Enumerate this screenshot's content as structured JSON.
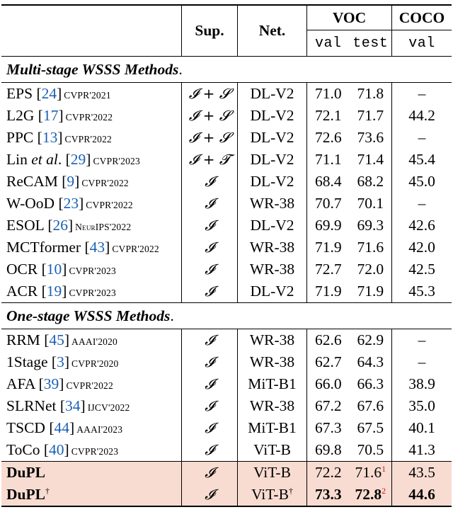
{
  "header": {
    "sup": "Sup.",
    "net": "Net.",
    "voc": "VOC",
    "coco": "COCO",
    "val": "val",
    "test": "test",
    "coco_val": "val"
  },
  "sections": [
    {
      "title": "Multi-stage WSSS Methods",
      "rows": [
        {
          "name": "EPS",
          "ref": "24",
          "venue": "CVPR'2021",
          "sup": "𝓘 + 𝓢",
          "net": "DL-V2",
          "val": "71.0",
          "test": "71.8",
          "coco": "–"
        },
        {
          "name": "L2G",
          "ref": "17",
          "venue": "CVPR'2022",
          "sup": "𝓘 + 𝓢",
          "net": "DL-V2",
          "val": "72.1",
          "test": "71.7",
          "coco": "44.2"
        },
        {
          "name": "PPC",
          "ref": "13",
          "venue": "CVPR'2022",
          "sup": "𝓘 + 𝓢",
          "net": "DL-V2",
          "val": "72.6",
          "test": "73.6",
          "coco": "–"
        },
        {
          "name": "Lin",
          "name_em": "et al",
          "ref": "29",
          "venue": "CVPR'2023",
          "sup": "𝓘 + 𝓣",
          "net": "DL-V2",
          "val": "71.1",
          "test": "71.4",
          "coco": "45.4"
        },
        {
          "name": "ReCAM",
          "ref": "9",
          "venue": "CVPR'2022",
          "sup": "𝓘",
          "net": "DL-V2",
          "val": "68.4",
          "test": "68.2",
          "coco": "45.0"
        },
        {
          "name": "W-OoD",
          "ref": "23",
          "venue": "CVPR'2022",
          "sup": "𝓘",
          "net": "WR-38",
          "val": "70.7",
          "test": "70.1",
          "coco": "–"
        },
        {
          "name": "ESOL",
          "ref": "26",
          "venue": "NeurIPS'2022",
          "sup": "𝓘",
          "net": "DL-V2",
          "val": "69.9",
          "test": "69.3",
          "coco": "42.6"
        },
        {
          "name": "MCTformer",
          "ref": "43",
          "venue": "CVPR'2022",
          "sup": "𝓘",
          "net": "WR-38",
          "val": "71.9",
          "test": "71.6",
          "coco": "42.0"
        },
        {
          "name": "OCR",
          "ref": "10",
          "venue": "CVPR'2023",
          "sup": "𝓘",
          "net": "WR-38",
          "val": "72.7",
          "test": "72.0",
          "coco": "42.5"
        },
        {
          "name": "ACR",
          "ref": "19",
          "venue": "CVPR'2023",
          "sup": "𝓘",
          "net": "DL-V2",
          "val": "71.9",
          "test": "71.9",
          "coco": "45.3"
        }
      ]
    },
    {
      "title": "One-stage WSSS Methods",
      "rows": [
        {
          "name": "RRM",
          "ref": "45",
          "venue": "AAAI'2020",
          "sup": "𝓘",
          "net": "WR-38",
          "val": "62.6",
          "test": "62.9",
          "coco": "–"
        },
        {
          "name": "1Stage",
          "ref": "3",
          "venue": "CVPR'2020",
          "sup": "𝓘",
          "net": "WR-38",
          "val": "62.7",
          "test": "64.3",
          "coco": "–"
        },
        {
          "name": "AFA",
          "ref": "39",
          "venue": "CVPR'2022",
          "sup": "𝓘",
          "net": "MiT-B1",
          "val": "66.0",
          "test": "66.3",
          "coco": "38.9"
        },
        {
          "name": "SLRNet",
          "ref": "34",
          "venue": "IJCV'2022",
          "sup": "𝓘",
          "net": "WR-38",
          "val": "67.2",
          "test": "67.6",
          "coco": "35.0"
        },
        {
          "name": "TSCD",
          "ref": "44",
          "venue": "AAAI'2023",
          "sup": "𝓘",
          "net": "MiT-B1",
          "val": "67.3",
          "test": "67.5",
          "coco": "40.1"
        },
        {
          "name": "ToCo",
          "ref": "40",
          "venue": "CVPR'2023",
          "sup": "𝓘",
          "net": "ViT-B",
          "val": "69.8",
          "test": "70.5",
          "coco": "41.3"
        }
      ]
    }
  ],
  "ours": [
    {
      "name": "DuPL",
      "sup": "𝓘",
      "net": "ViT-B",
      "val": "72.2",
      "test": "71.6",
      "test_note": "1",
      "coco": "43.5"
    },
    {
      "name": "DuPL",
      "name_mark": "†",
      "sup": "𝓘",
      "net": "ViT-B",
      "net_mark": "†",
      "val": "73.3",
      "test": "72.8",
      "test_note": "2",
      "coco": "44.6"
    }
  ],
  "colors": {
    "highlight": "#f8dcd2",
    "ref": "#1a5fb4",
    "note": "#d01818"
  }
}
